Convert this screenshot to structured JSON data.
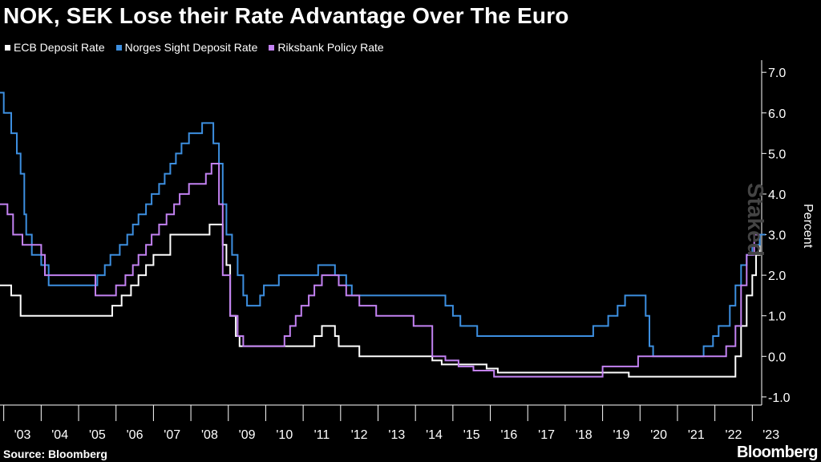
{
  "header": {
    "title": "NOK, SEK Lose their Rate Advantage Over The Euro"
  },
  "footer": {
    "source": "Source: Bloomberg",
    "brand": "Bloomberg",
    "watermark": "Staked"
  },
  "chart_data": {
    "type": "line",
    "title": "NOK, SEK Lose their Rate Advantage Over The Euro",
    "xlabel": "",
    "ylabel": "Percent",
    "xlim": [
      2002.9,
      2023.25
    ],
    "ylim": [
      -1.2,
      7.3
    ],
    "yticks": [
      -1.0,
      0.0,
      1.0,
      2.0,
      3.0,
      4.0,
      5.0,
      6.0,
      7.0
    ],
    "ytick_labels": [
      "-1.0",
      "0.0",
      "1.0",
      "2.0",
      "3.0",
      "4.0",
      "5.0",
      "6.0",
      "7.0"
    ],
    "xticks": [
      "'03",
      "'04",
      "'05",
      "'06",
      "'07",
      "'08",
      "'09",
      "'10",
      "'11",
      "'12",
      "'13",
      "'14",
      "'15",
      "'16",
      "'17",
      "'18",
      "'19",
      "'20",
      "'21",
      "'22",
      "'23"
    ],
    "grid": false,
    "legend": "top-left",
    "series": [
      {
        "name": "ECB Deposit Rate",
        "color": "#ffffff",
        "points": [
          [
            2002.9,
            1.75
          ],
          [
            2003.2,
            1.5
          ],
          [
            2003.45,
            1.0
          ],
          [
            2005.9,
            1.25
          ],
          [
            2006.15,
            1.5
          ],
          [
            2006.4,
            1.75
          ],
          [
            2006.6,
            2.0
          ],
          [
            2006.8,
            2.25
          ],
          [
            2007.0,
            2.5
          ],
          [
            2007.45,
            3.0
          ],
          [
            2008.5,
            3.25
          ],
          [
            2008.85,
            2.75
          ],
          [
            2008.95,
            2.25
          ],
          [
            2009.05,
            1.0
          ],
          [
            2009.2,
            0.5
          ],
          [
            2009.3,
            0.25
          ],
          [
            2011.3,
            0.5
          ],
          [
            2011.5,
            0.75
          ],
          [
            2011.85,
            0.5
          ],
          [
            2011.95,
            0.25
          ],
          [
            2012.5,
            0.0
          ],
          [
            2014.45,
            -0.1
          ],
          [
            2014.7,
            -0.2
          ],
          [
            2015.9,
            -0.3
          ],
          [
            2016.2,
            -0.4
          ],
          [
            2019.7,
            -0.5
          ],
          [
            2022.55,
            0.0
          ],
          [
            2022.7,
            0.75
          ],
          [
            2022.85,
            1.5
          ],
          [
            2023.0,
            2.0
          ],
          [
            2023.1,
            2.5
          ],
          [
            2023.2,
            3.0
          ]
        ]
      },
      {
        "name": "Norges Sight Deposit Rate",
        "color": "#3d8fe0",
        "points": [
          [
            2002.9,
            6.5
          ],
          [
            2003.0,
            6.0
          ],
          [
            2003.2,
            5.5
          ],
          [
            2003.35,
            5.0
          ],
          [
            2003.45,
            4.5
          ],
          [
            2003.55,
            3.5
          ],
          [
            2003.6,
            3.0
          ],
          [
            2003.75,
            2.5
          ],
          [
            2004.0,
            2.25
          ],
          [
            2004.2,
            1.75
          ],
          [
            2005.5,
            2.0
          ],
          [
            2005.7,
            2.25
          ],
          [
            2005.85,
            2.5
          ],
          [
            2006.1,
            2.75
          ],
          [
            2006.3,
            3.0
          ],
          [
            2006.45,
            3.25
          ],
          [
            2006.6,
            3.5
          ],
          [
            2006.8,
            3.75
          ],
          [
            2006.95,
            4.0
          ],
          [
            2007.15,
            4.25
          ],
          [
            2007.3,
            4.5
          ],
          [
            2007.45,
            4.75
          ],
          [
            2007.6,
            5.0
          ],
          [
            2007.75,
            5.25
          ],
          [
            2007.95,
            5.5
          ],
          [
            2008.3,
            5.75
          ],
          [
            2008.6,
            5.25
          ],
          [
            2008.75,
            4.75
          ],
          [
            2008.85,
            3.75
          ],
          [
            2008.95,
            3.0
          ],
          [
            2009.1,
            2.5
          ],
          [
            2009.25,
            2.0
          ],
          [
            2009.4,
            1.5
          ],
          [
            2009.5,
            1.25
          ],
          [
            2009.85,
            1.5
          ],
          [
            2009.95,
            1.75
          ],
          [
            2010.35,
            2.0
          ],
          [
            2011.4,
            2.25
          ],
          [
            2011.85,
            2.0
          ],
          [
            2012.15,
            1.75
          ],
          [
            2012.3,
            1.5
          ],
          [
            2014.8,
            1.25
          ],
          [
            2015.0,
            1.0
          ],
          [
            2015.2,
            0.75
          ],
          [
            2015.65,
            0.5
          ],
          [
            2018.75,
            0.75
          ],
          [
            2019.15,
            1.0
          ],
          [
            2019.4,
            1.25
          ],
          [
            2019.6,
            1.5
          ],
          [
            2020.15,
            1.0
          ],
          [
            2020.25,
            0.25
          ],
          [
            2020.35,
            0.0
          ],
          [
            2021.7,
            0.25
          ],
          [
            2021.95,
            0.5
          ],
          [
            2022.1,
            0.75
          ],
          [
            2022.4,
            1.25
          ],
          [
            2022.55,
            1.75
          ],
          [
            2022.7,
            2.25
          ],
          [
            2022.85,
            2.5
          ],
          [
            2023.0,
            2.75
          ],
          [
            2023.2,
            3.0
          ]
        ]
      },
      {
        "name": "Riksbank Policy Rate",
        "color": "#c382f2",
        "points": [
          [
            2002.9,
            3.75
          ],
          [
            2003.1,
            3.5
          ],
          [
            2003.25,
            3.0
          ],
          [
            2003.5,
            2.75
          ],
          [
            2004.0,
            2.5
          ],
          [
            2004.1,
            2.0
          ],
          [
            2005.45,
            1.5
          ],
          [
            2006.0,
            1.75
          ],
          [
            2006.25,
            2.0
          ],
          [
            2006.45,
            2.25
          ],
          [
            2006.6,
            2.5
          ],
          [
            2006.8,
            2.75
          ],
          [
            2006.95,
            3.0
          ],
          [
            2007.15,
            3.25
          ],
          [
            2007.35,
            3.5
          ],
          [
            2007.55,
            3.75
          ],
          [
            2007.7,
            4.0
          ],
          [
            2007.95,
            4.25
          ],
          [
            2008.4,
            4.5
          ],
          [
            2008.55,
            4.75
          ],
          [
            2008.75,
            3.75
          ],
          [
            2008.85,
            2.0
          ],
          [
            2009.05,
            1.0
          ],
          [
            2009.25,
            0.5
          ],
          [
            2009.4,
            0.25
          ],
          [
            2010.5,
            0.5
          ],
          [
            2010.65,
            0.75
          ],
          [
            2010.8,
            1.0
          ],
          [
            2010.95,
            1.25
          ],
          [
            2011.15,
            1.5
          ],
          [
            2011.3,
            1.75
          ],
          [
            2011.5,
            2.0
          ],
          [
            2011.95,
            1.75
          ],
          [
            2012.15,
            1.5
          ],
          [
            2012.5,
            1.25
          ],
          [
            2012.95,
            1.0
          ],
          [
            2013.95,
            0.75
          ],
          [
            2014.45,
            0.0
          ],
          [
            2014.8,
            -0.1
          ],
          [
            2015.15,
            -0.25
          ],
          [
            2015.55,
            -0.35
          ],
          [
            2016.1,
            -0.5
          ],
          [
            2019.0,
            -0.25
          ],
          [
            2019.95,
            0.0
          ],
          [
            2022.3,
            0.25
          ],
          [
            2022.55,
            0.75
          ],
          [
            2022.7,
            1.75
          ],
          [
            2022.85,
            2.5
          ],
          [
            2023.05,
            3.0
          ]
        ]
      }
    ]
  }
}
